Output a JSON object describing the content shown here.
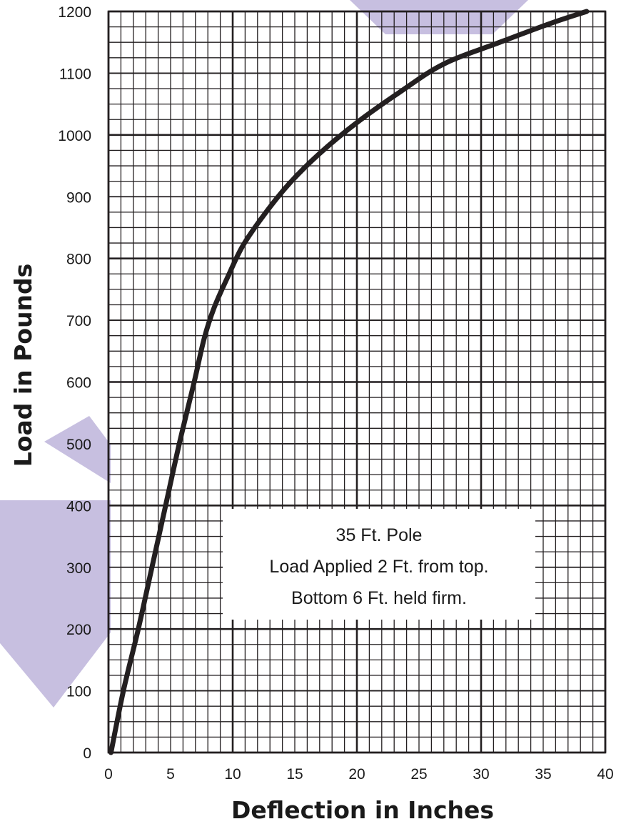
{
  "chart_data": {
    "type": "line",
    "xlabel": "Deflection in Inches",
    "ylabel": "Load in Pounds",
    "xlim": [
      0,
      40
    ],
    "ylim": [
      0,
      1200
    ],
    "xticks": [
      "0",
      "5",
      "10",
      "15",
      "20",
      "25",
      "30",
      "35",
      "40"
    ],
    "yticks": [
      "0",
      "100",
      "200",
      "300",
      "400",
      "500",
      "600",
      "700",
      "800",
      "900",
      "1000",
      "1100",
      "1200"
    ],
    "grid": true,
    "legend": "none",
    "series": [
      {
        "x": [
          0.2,
          1.2,
          2.4,
          3.5,
          4.6,
          5.7,
          6.9,
          7.7,
          8.5,
          9.6,
          10.8,
          12.5,
          14.5,
          17.0,
          20.0,
          23.5,
          27.0,
          31.5,
          35.5,
          38.5
        ],
        "y": [
          0,
          100,
          200,
          300,
          400,
          500,
          600,
          670,
          720,
          770,
          820,
          870,
          920,
          970,
          1020,
          1070,
          1115,
          1150,
          1180,
          1200
        ],
        "color": "#231f20"
      }
    ],
    "annotations": [
      "35 Ft. Pole",
      "Load Applied 2 Ft. from top.",
      "Bottom 6 Ft. held firm."
    ]
  },
  "colors": {
    "watermark": "#c7bfe0",
    "ink": "#231f20"
  }
}
